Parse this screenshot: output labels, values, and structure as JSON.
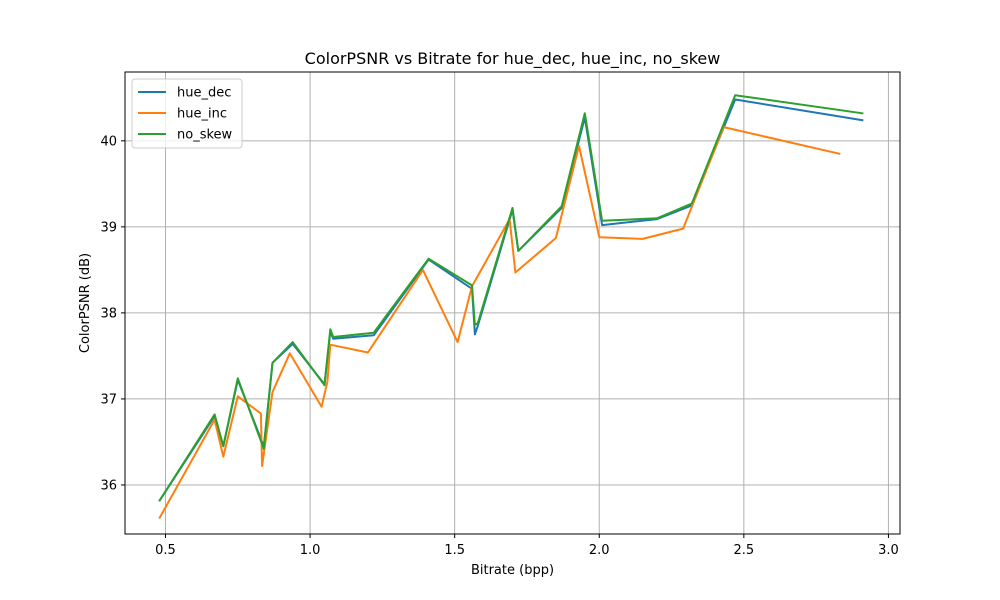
{
  "chart_data": {
    "type": "line",
    "title": "ColorPSNR vs Bitrate for hue_dec, hue_inc, no_skew",
    "xlabel": "Bitrate (bpp)",
    "ylabel": "ColorPSNR (dB)",
    "xlim": [
      0.36,
      3.04
    ],
    "ylim": [
      35.43,
      40.8
    ],
    "xticks": [
      0.5,
      1.0,
      1.5,
      2.0,
      2.5,
      3.0
    ],
    "xtick_labels": [
      "0.5",
      "1.0",
      "1.5",
      "2.0",
      "2.5",
      "3.0"
    ],
    "yticks": [
      36,
      37,
      38,
      39,
      40
    ],
    "ytick_labels": [
      "36",
      "37",
      "38",
      "39",
      "40"
    ],
    "grid": true,
    "legend_position": "top-left",
    "series": [
      {
        "name": "hue_dec",
        "color": "#1f77b4",
        "x": [
          0.48,
          0.67,
          0.7,
          0.75,
          0.84,
          0.87,
          0.94,
          1.05,
          1.07,
          1.08,
          1.22,
          1.41,
          1.56,
          1.57,
          1.58,
          1.7,
          1.72,
          1.87,
          1.95,
          2.01,
          2.2,
          2.32,
          2.47,
          2.91
        ],
        "y": [
          35.82,
          36.8,
          36.45,
          37.22,
          36.45,
          37.42,
          37.64,
          37.17,
          37.78,
          37.7,
          37.74,
          38.62,
          38.28,
          37.75,
          37.85,
          39.2,
          38.72,
          39.22,
          40.27,
          39.02,
          39.09,
          39.25,
          40.48,
          40.24
        ]
      },
      {
        "name": "hue_inc",
        "color": "#ff7f0e",
        "x": [
          0.48,
          0.67,
          0.7,
          0.75,
          0.83,
          0.834,
          0.87,
          0.93,
          1.04,
          1.06,
          1.07,
          1.2,
          1.39,
          1.51,
          1.56,
          1.69,
          1.71,
          1.85,
          1.93,
          2.0,
          2.15,
          2.29,
          2.43,
          2.83
        ],
        "y": [
          35.62,
          36.76,
          36.33,
          37.03,
          36.83,
          36.22,
          37.08,
          37.53,
          36.91,
          37.2,
          37.63,
          37.54,
          38.5,
          37.66,
          38.31,
          39.09,
          38.47,
          38.87,
          39.94,
          38.88,
          38.86,
          38.98,
          40.16,
          39.85
        ]
      },
      {
        "name": "no_skew",
        "color": "#2ca02c",
        "x": [
          0.48,
          0.67,
          0.7,
          0.75,
          0.84,
          0.87,
          0.94,
          1.05,
          1.07,
          1.08,
          1.22,
          1.41,
          1.56,
          1.57,
          1.58,
          1.7,
          1.72,
          1.87,
          1.95,
          2.01,
          2.2,
          2.32,
          2.47,
          2.91
        ],
        "y": [
          35.82,
          36.82,
          36.45,
          37.24,
          36.42,
          37.42,
          37.66,
          37.16,
          37.81,
          37.72,
          37.77,
          38.63,
          38.32,
          37.86,
          37.88,
          39.22,
          38.72,
          39.24,
          40.32,
          39.07,
          39.1,
          39.27,
          40.53,
          40.32
        ]
      }
    ]
  }
}
